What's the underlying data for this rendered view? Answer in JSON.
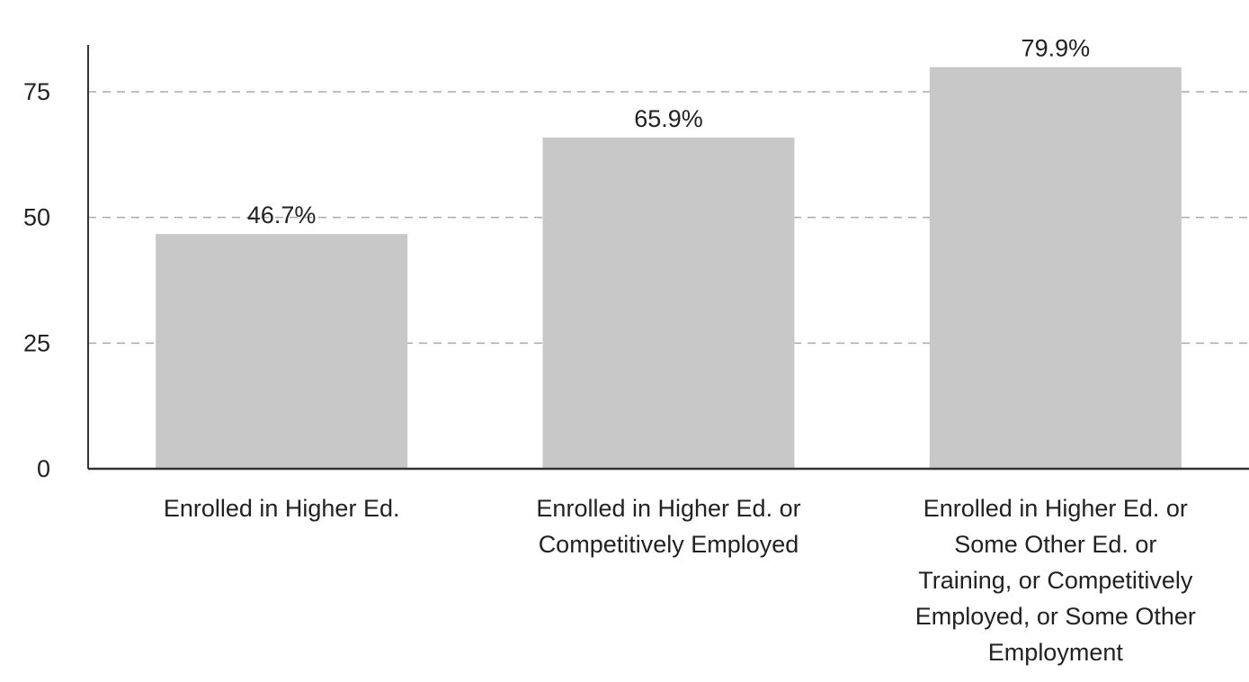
{
  "chart_data": {
    "type": "bar",
    "categories": [
      [
        "Enrolled in Higher Ed."
      ],
      [
        "Enrolled in Higher Ed. or",
        "Competitively Employed"
      ],
      [
        "Enrolled in Higher Ed. or",
        "Some Other Ed. or",
        "Training, or Competitively",
        "Employed, or Some Other",
        "Employment"
      ]
    ],
    "values": [
      46.7,
      65.9,
      79.9
    ],
    "data_labels": [
      "46.7%",
      "65.9%",
      "79.9%"
    ],
    "y_ticks": [
      0,
      25,
      50,
      75
    ],
    "ylim": [
      0,
      85
    ],
    "grid": true,
    "title": "",
    "xlabel": "",
    "ylabel": "",
    "colors": {
      "bar": "#c8c8c8",
      "grid": "#aaaaaa",
      "axis": "#333333"
    }
  }
}
